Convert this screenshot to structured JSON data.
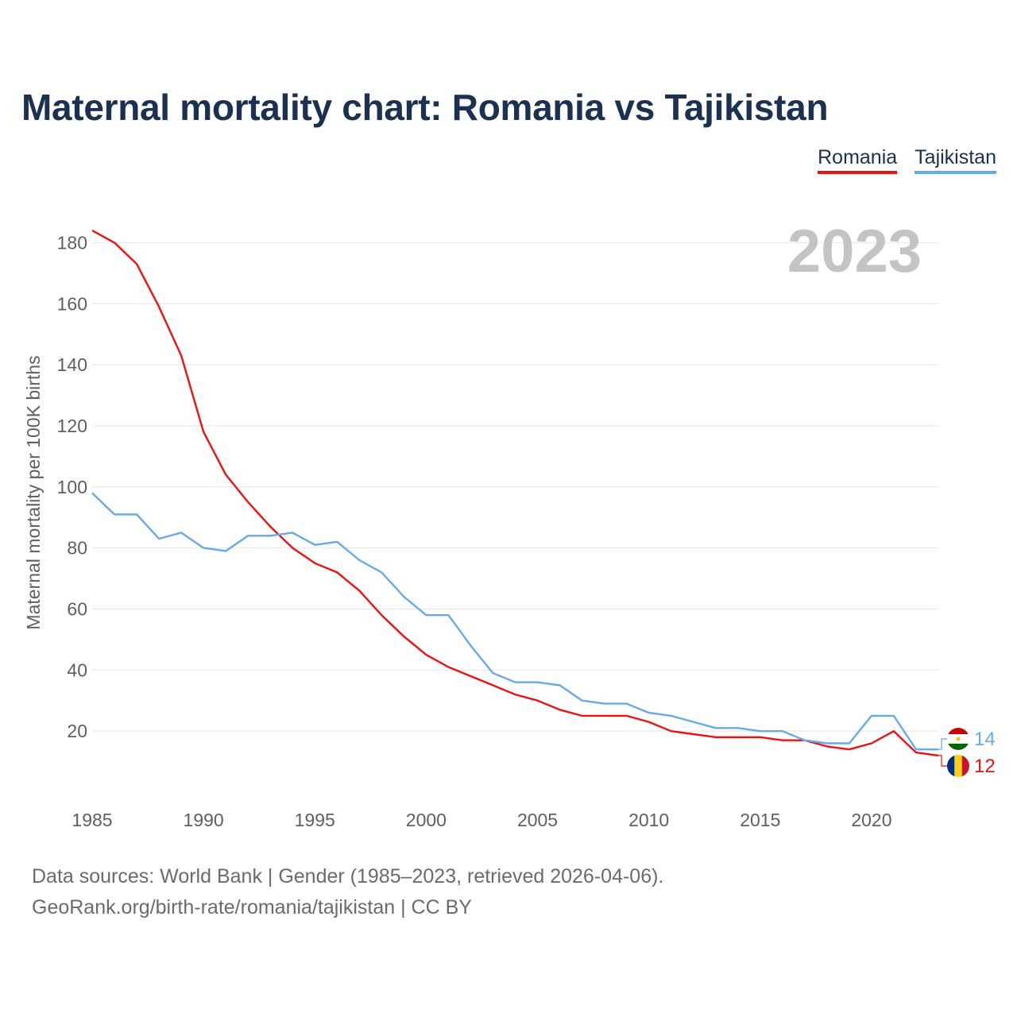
{
  "title": "Maternal mortality chart: Romania vs Tajikistan",
  "legend": [
    {
      "name": "Romania",
      "color": "#ee1111"
    },
    {
      "name": "Tajikistan",
      "color": "#66aae8"
    }
  ],
  "footer": {
    "line1": "Data sources: World Bank | Gender (1985–2023, retrieved 2026-04-06).",
    "line2": "GeoRank.org/birth-rate/romania/tajikistan | CC BY"
  },
  "chart_data": {
    "type": "line",
    "title": "Maternal mortality chart: Romania vs Tajikistan",
    "xlabel": "",
    "ylabel": "Maternal mortality per 100K births",
    "year_label": "2023",
    "xlim": [
      1985,
      2023
    ],
    "ylim": [
      0,
      190
    ],
    "x_ticks": [
      1985,
      1990,
      1995,
      2000,
      2005,
      2010,
      2015,
      2020
    ],
    "y_ticks": [
      20,
      40,
      60,
      80,
      100,
      120,
      140,
      160,
      180
    ],
    "grid": true,
    "legend_position": "top-right",
    "x": [
      1985,
      1986,
      1987,
      1988,
      1989,
      1990,
      1991,
      1992,
      1993,
      1994,
      1995,
      1996,
      1997,
      1998,
      1999,
      2000,
      2001,
      2002,
      2003,
      2004,
      2005,
      2006,
      2007,
      2008,
      2009,
      2010,
      2011,
      2012,
      2013,
      2014,
      2015,
      2016,
      2017,
      2018,
      2019,
      2020,
      2021,
      2022,
      2023
    ],
    "series": [
      {
        "name": "Romania",
        "color": "#ee1111",
        "end_label": "12",
        "flag": "romania-flag",
        "values": [
          184,
          180,
          173,
          159,
          143,
          118,
          104,
          95,
          87,
          80,
          75,
          72,
          66,
          58,
          51,
          45,
          41,
          38,
          35,
          32,
          30,
          27,
          25,
          25,
          25,
          23,
          20,
          19,
          18,
          18,
          18,
          17,
          17,
          15,
          14,
          16,
          20,
          13,
          12
        ]
      },
      {
        "name": "Tajikistan",
        "color": "#66aae8",
        "end_label": "14",
        "flag": "tajikistan-flag",
        "values": [
          98,
          91,
          91,
          83,
          85,
          80,
          79,
          84,
          84,
          85,
          81,
          82,
          76,
          72,
          64,
          58,
          58,
          48,
          39,
          36,
          36,
          35,
          30,
          29,
          29,
          26,
          25,
          23,
          21,
          21,
          20,
          20,
          17,
          16,
          16,
          25,
          25,
          14,
          14
        ]
      }
    ]
  }
}
